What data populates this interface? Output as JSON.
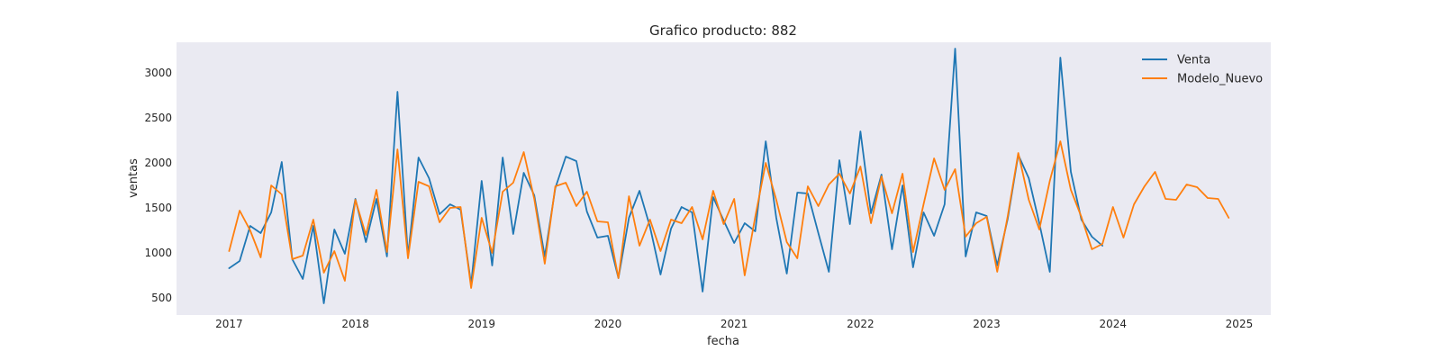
{
  "chart_data": {
    "type": "line",
    "title": "Grafico producto: 882",
    "xlabel": "fecha",
    "ylabel": "ventas",
    "x_start": "2017-01",
    "x_ticks": [
      "2017",
      "2018",
      "2019",
      "2020",
      "2021",
      "2022",
      "2023",
      "2024",
      "2025"
    ],
    "y_ticks": [
      500,
      1000,
      1500,
      2000,
      2500,
      3000
    ],
    "ylim": [
      310,
      3340
    ],
    "xlim": [
      "2016-08",
      "2025-04"
    ],
    "grid": false,
    "legend": "top-right",
    "series": [
      {
        "name": "Venta",
        "color": "#1f77b4",
        "values": [
          830,
          910,
          1300,
          1220,
          1450,
          2010,
          930,
          710,
          1300,
          440,
          1260,
          990,
          1600,
          1120,
          1600,
          960,
          2790,
          960,
          2060,
          1830,
          1430,
          1540,
          1480,
          650,
          1800,
          860,
          2060,
          1210,
          1890,
          1640,
          960,
          1720,
          2070,
          2020,
          1460,
          1170,
          1190,
          720,
          1390,
          1690,
          1290,
          760,
          1270,
          1510,
          1450,
          570,
          1620,
          1360,
          1110,
          1330,
          1240,
          2240,
          1390,
          770,
          1670,
          1660,
          1220,
          790,
          2030,
          1320,
          2350,
          1440,
          1870,
          1040,
          1750,
          840,
          1450,
          1190,
          1540,
          3270,
          960,
          1450,
          1410,
          860,
          1380,
          2090,
          1830,
          1330,
          790,
          3170,
          1900,
          1370,
          1180,
          1080
        ]
      },
      {
        "name": "Modelo_Nuevo",
        "color": "#ff7f0e",
        "values": [
          1020,
          1470,
          1250,
          950,
          1750,
          1650,
          930,
          970,
          1370,
          780,
          1020,
          690,
          1590,
          1200,
          1700,
          1010,
          2150,
          940,
          1790,
          1740,
          1340,
          1500,
          1510,
          610,
          1390,
          1000,
          1680,
          1780,
          2120,
          1600,
          880,
          1740,
          1780,
          1520,
          1680,
          1350,
          1340,
          720,
          1630,
          1080,
          1370,
          1020,
          1370,
          1330,
          1510,
          1150,
          1690,
          1320,
          1600,
          750,
          1400,
          2000,
          1590,
          1120,
          940,
          1740,
          1520,
          1760,
          1880,
          1660,
          1960,
          1330,
          1850,
          1440,
          1880,
          1010,
          1540,
          2050,
          1700,
          1930,
          1180,
          1330,
          1400,
          790,
          1410,
          2110,
          1590,
          1260,
          1800,
          2240,
          1700,
          1400,
          1040,
          1100,
          1510,
          1170,
          1540,
          1740,
          1900,
          1600,
          1590,
          1760,
          1730,
          1610,
          1600,
          1390
        ]
      }
    ]
  }
}
